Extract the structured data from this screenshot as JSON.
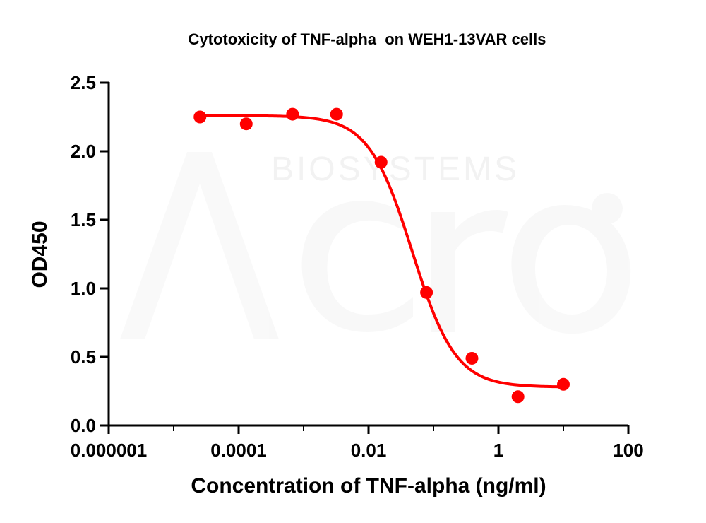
{
  "chart_data": {
    "type": "scatter",
    "title": "Cytotoxicity of TNF-alpha  on WEH1-13VAR cells",
    "xlabel": "Concentration of TNF-alpha (ng/ml)",
    "ylabel": "OD450",
    "x_scale": "log",
    "xlim": [
      1e-06,
      100
    ],
    "ylim": [
      0,
      2.5
    ],
    "x_ticks": [
      1e-06,
      0.0001,
      0.01,
      1,
      100
    ],
    "x_tick_labels": [
      "0.000001",
      "0.0001",
      "0.01",
      "1",
      "100"
    ],
    "y_ticks": [
      0,
      0.5,
      1,
      1.5,
      2,
      2.5
    ],
    "y_tick_labels": [
      "0.0",
      "0.5",
      "1.0",
      "1.5",
      "2.0",
      "2.5"
    ],
    "grid": false,
    "series": [
      {
        "color": "#ff0000",
        "x": [
          2.54e-05,
          0.000131,
          0.000676,
          0.00322,
          0.0156,
          0.0781,
          0.391,
          2.0,
          10.0
        ],
        "y": [
          2.25,
          2.2,
          2.27,
          2.27,
          1.92,
          0.97,
          0.49,
          0.21,
          0.3
        ],
        "fit": {
          "model": "4PL",
          "top": 2.26,
          "bottom": 0.28,
          "ec50": 0.047,
          "hill": 1.3
        }
      }
    ],
    "watermark": "BIOSYSTEMS"
  }
}
